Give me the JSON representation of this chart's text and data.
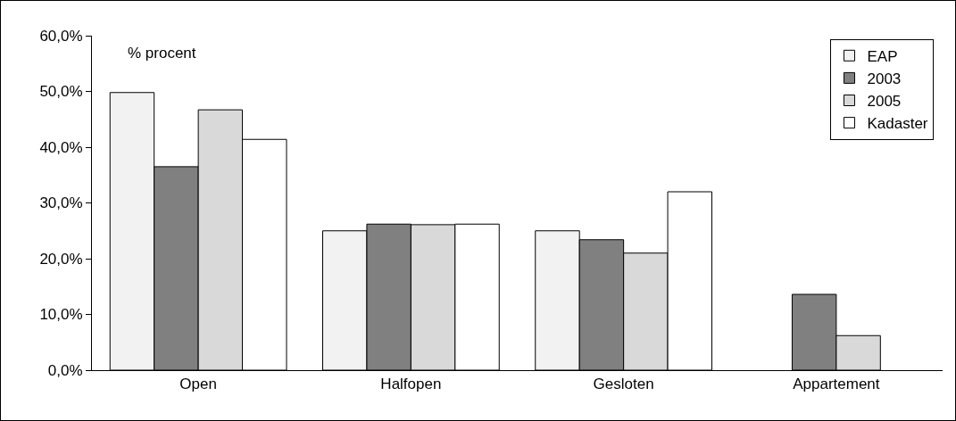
{
  "chart_data": {
    "type": "bar",
    "categories": [
      "Open",
      "Halfopen",
      "Gesloten",
      "Appartement"
    ],
    "series": [
      {
        "name": "EAP",
        "color": "#f2f2f2",
        "values": [
          49.8,
          25.0,
          25.0,
          null
        ]
      },
      {
        "name": "2003",
        "color": "#808080",
        "values": [
          36.5,
          26.2,
          23.4,
          13.6
        ]
      },
      {
        "name": "2005",
        "color": "#d9d9d9",
        "values": [
          46.7,
          26.1,
          21.0,
          6.2
        ]
      },
      {
        "name": "Kadaster",
        "color": "#ffffff",
        "values": [
          41.4,
          26.2,
          32.0,
          null
        ]
      }
    ],
    "ylim": [
      0,
      60
    ],
    "yticks": [
      {
        "value": 0,
        "label": "0,0%"
      },
      {
        "value": 10,
        "label": "10,0%"
      },
      {
        "value": 20,
        "label": "20,0%"
      },
      {
        "value": 30,
        "label": "30,0%"
      },
      {
        "value": 40,
        "label": "40,0%"
      },
      {
        "value": 50,
        "label": "50,0%"
      },
      {
        "value": 60,
        "label": "60,0%"
      }
    ],
    "annotations": [
      "% procent"
    ],
    "grid": false,
    "legend": "top right"
  }
}
